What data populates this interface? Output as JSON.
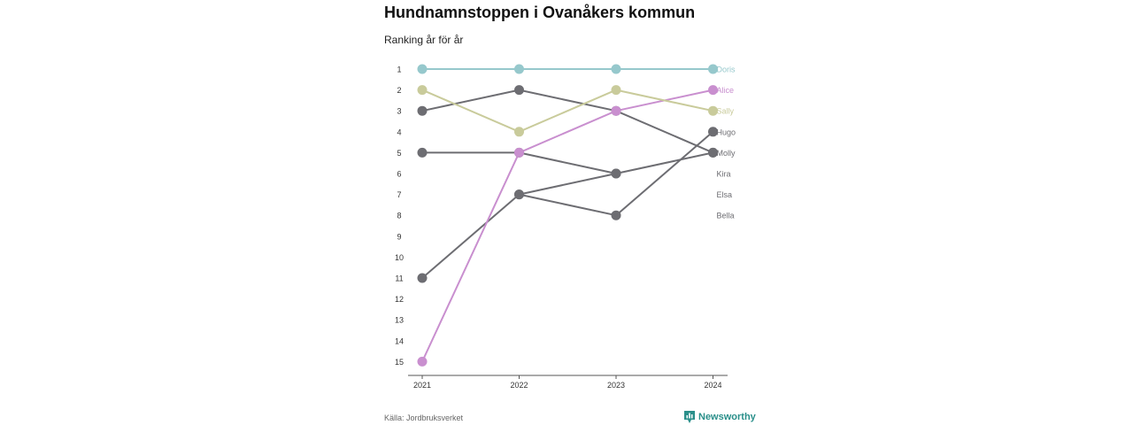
{
  "header": {
    "title": "Hundnamnstoppen i Ovanåkers kommun",
    "subtitle": "Ranking år för år"
  },
  "footer": {
    "source": "Källa: Jordbruksverket",
    "brand": "Newsworthy",
    "brand_icon": "chart-icon",
    "brand_color": "#2a8f8a"
  },
  "chart_data": {
    "type": "line",
    "title": "Hundnamnstoppen i Ovanåkers kommun",
    "subtitle": "Ranking år för år",
    "xlabel": "",
    "ylabel": "",
    "x": [
      "2021",
      "2022",
      "2023",
      "2024"
    ],
    "y_ticks": [
      1,
      2,
      3,
      4,
      5,
      6,
      7,
      8,
      9,
      10,
      11,
      12,
      13,
      14,
      15
    ],
    "ylim": [
      1,
      15
    ],
    "y_inverted": true,
    "grid": false,
    "legend": "end-labels-right",
    "series": [
      {
        "name": "Doris",
        "color": "#96c8cc",
        "values": [
          1,
          1,
          1,
          1
        ]
      },
      {
        "name": "Alice",
        "color": "#c98fcf",
        "values": [
          15,
          5,
          3,
          2
        ]
      },
      {
        "name": "Sally",
        "color": "#c9cb9b",
        "values": [
          2,
          4,
          2,
          3
        ]
      },
      {
        "name": "Hugo",
        "color": "#6d6d72",
        "values": [
          11,
          7,
          8,
          4
        ]
      },
      {
        "name": "Molly",
        "color": "#6d6d72",
        "values": [
          3,
          2,
          3,
          5
        ]
      },
      {
        "name": "Kira",
        "color": "#6d6d72",
        "values": [
          5,
          5,
          6,
          5
        ]
      },
      {
        "name": "Elsa",
        "color": "#6d6d72",
        "values": [
          null,
          7,
          6,
          null
        ]
      },
      {
        "name": "Bella",
        "color": "#6d6d72",
        "values": [
          null,
          null,
          null,
          null
        ]
      }
    ],
    "end_labels": [
      {
        "name": "Doris",
        "rank": 1,
        "color": "#96c8cc"
      },
      {
        "name": "Alice",
        "rank": 2,
        "color": "#c98fcf"
      },
      {
        "name": "Sally",
        "rank": 3,
        "color": "#c9cb9b"
      },
      {
        "name": "Hugo",
        "rank": 4,
        "color": "#6d6d72"
      },
      {
        "name": "Molly",
        "rank": 5,
        "color": "#6d6d72"
      },
      {
        "name": "Kira",
        "rank": 6,
        "color": "#6d6d72"
      },
      {
        "name": "Elsa",
        "rank": 7,
        "color": "#6d6d72"
      },
      {
        "name": "Bella",
        "rank": 8,
        "color": "#6d6d72"
      }
    ]
  }
}
